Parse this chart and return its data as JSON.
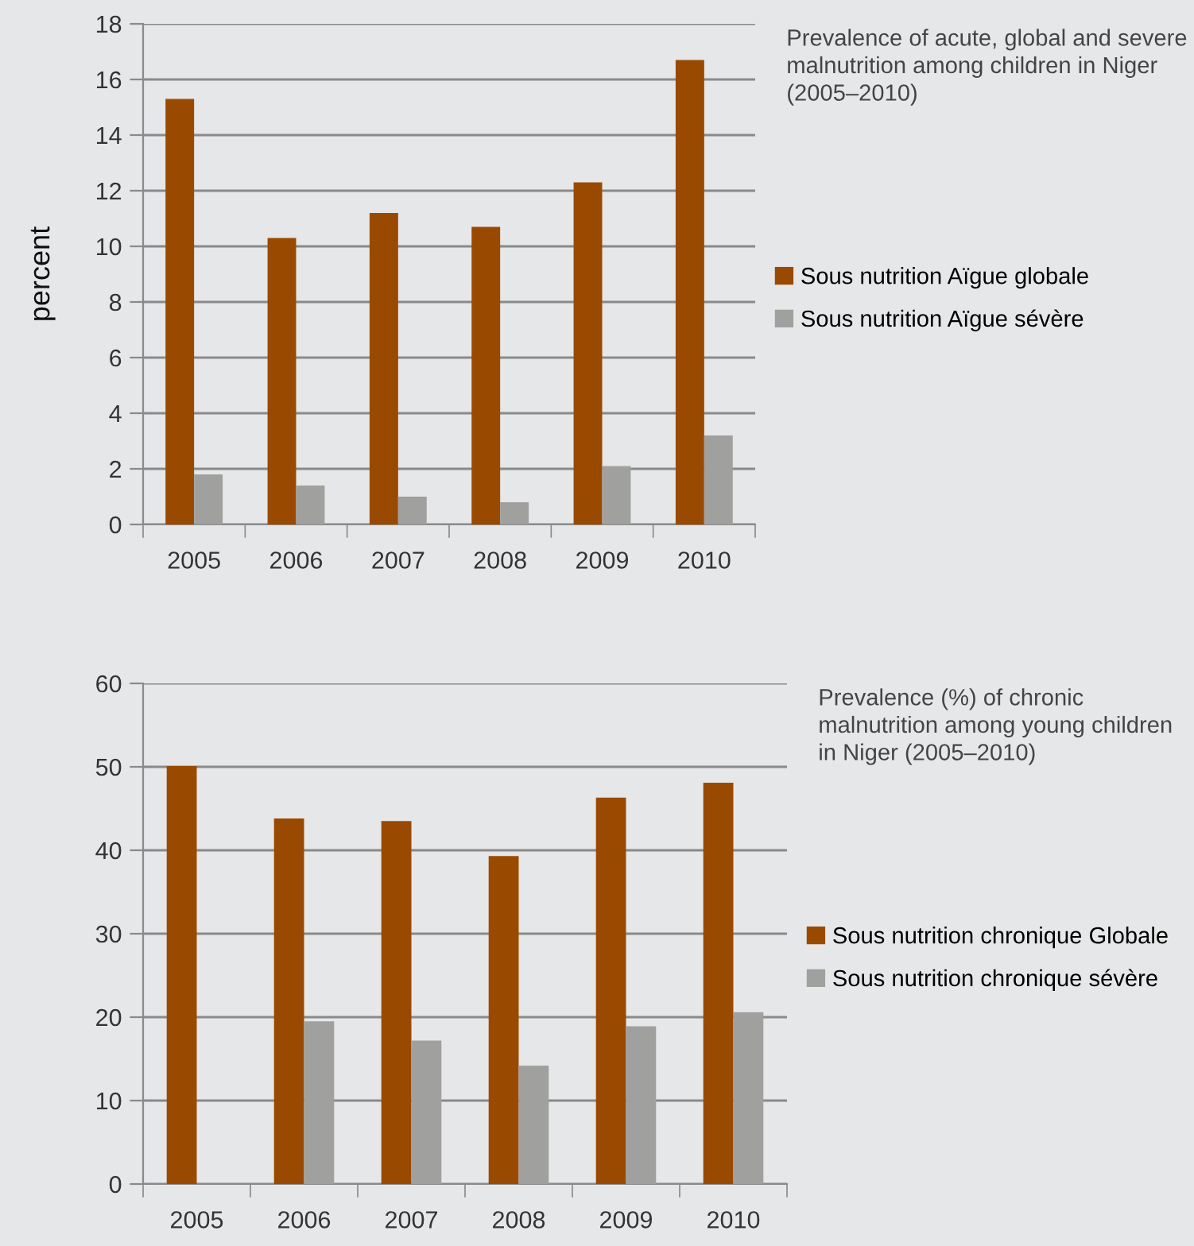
{
  "chart_data": [
    {
      "type": "bar",
      "annotations": [
        "Prevalence of acute, global and severe malnutrition among children in Niger (2005–2010)"
      ],
      "ylabel": "percent",
      "categories": [
        "2005",
        "2006",
        "2007",
        "2008",
        "2009",
        "2010"
      ],
      "series": [
        {
          "name": "Sous nutrition Aïgue globale",
          "color": "#9a4a00",
          "values": [
            15.3,
            10.3,
            11.2,
            10.7,
            12.3,
            16.7
          ]
        },
        {
          "name": "Sous nutrition Aïgue sévère",
          "color": "#a0a09e",
          "values": [
            1.8,
            1.4,
            1.0,
            0.8,
            2.1,
            3.2
          ]
        }
      ],
      "ylim": [
        0,
        18
      ],
      "yticks": [
        0,
        2,
        4,
        6,
        8,
        10,
        12,
        14,
        16,
        18
      ],
      "grid": "y",
      "legend": "right"
    },
    {
      "type": "bar",
      "annotations": [
        "Prevalence (%) of chronic malnutrition among young children in Niger (2005–2010)"
      ],
      "categories": [
        "2005",
        "2006",
        "2007",
        "2008",
        "2009",
        "2010"
      ],
      "series": [
        {
          "name": "Sous nutrition chronique Globale",
          "color": "#9a4a00",
          "values": [
            50.1,
            43.8,
            43.5,
            39.3,
            46.3,
            48.1
          ]
        },
        {
          "name": "Sous nutrition chronique sévère",
          "color": "#a0a09e",
          "values": [
            null,
            19.5,
            17.2,
            14.2,
            18.9,
            20.6
          ]
        }
      ],
      "ylim": [
        0,
        60
      ],
      "yticks": [
        0,
        10,
        20,
        30,
        40,
        50,
        60
      ],
      "grid": "y",
      "legend": "right"
    }
  ]
}
